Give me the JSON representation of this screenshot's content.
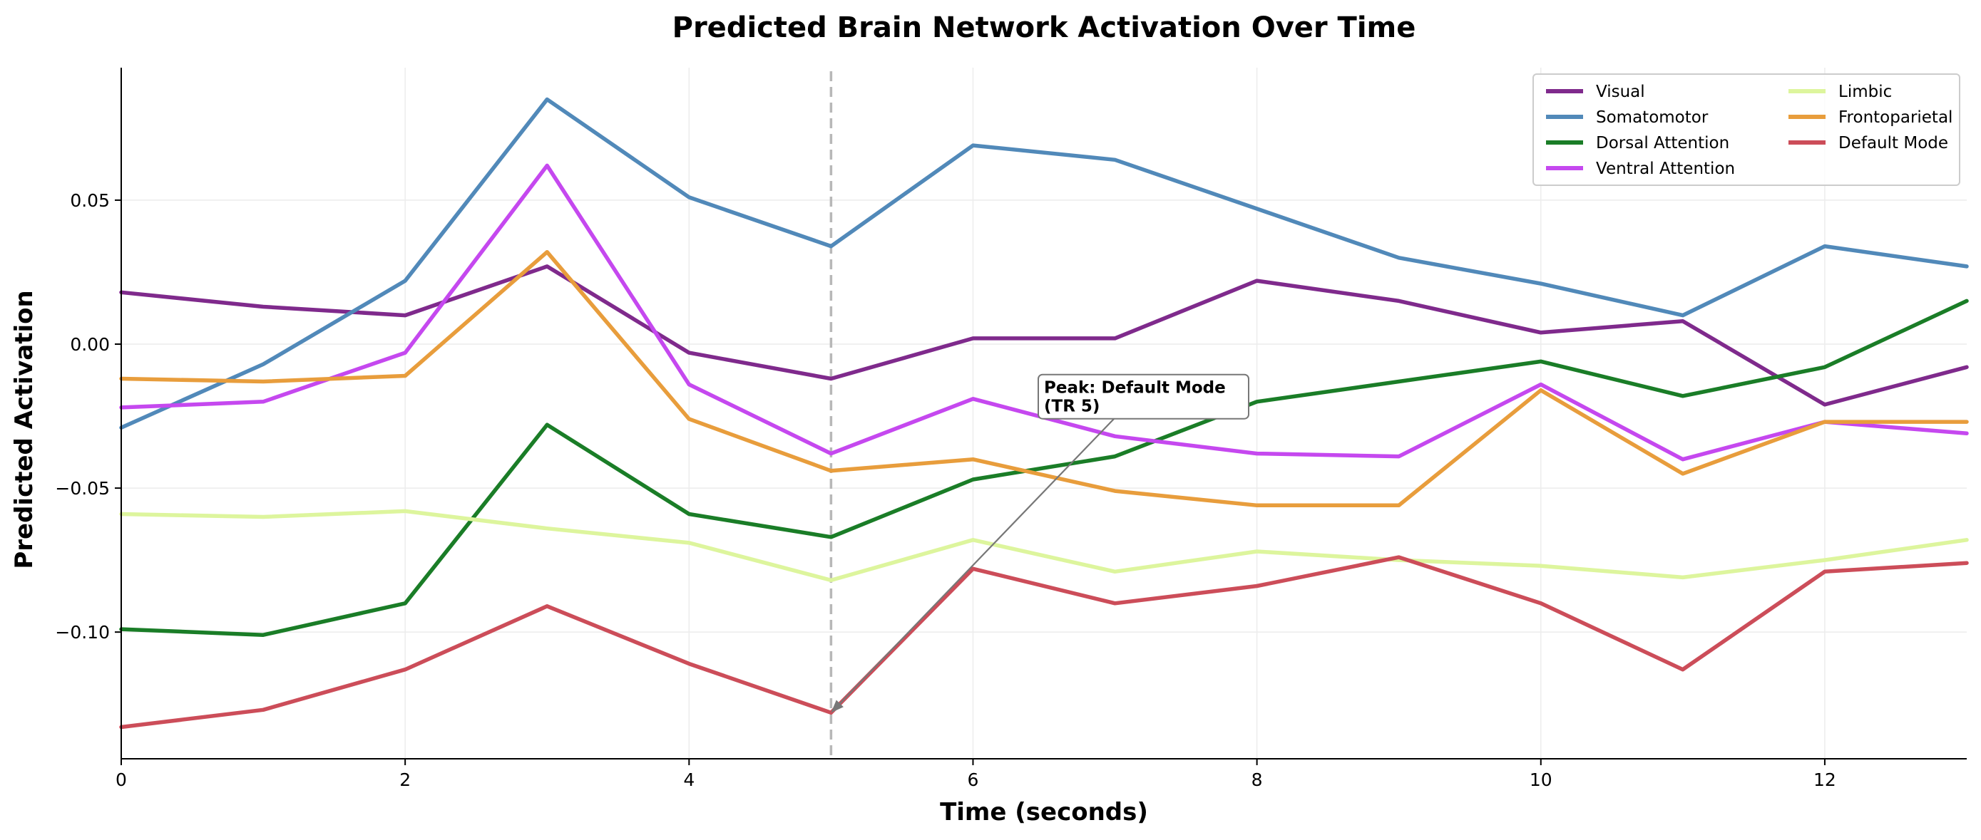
{
  "chart_data": {
    "type": "line",
    "title": "Predicted Brain Network Activation Over Time",
    "xlabel": "Time (seconds)",
    "ylabel": "Predicted Activation",
    "xlim": [
      0,
      13
    ],
    "ylim": [
      -0.144,
      0.096
    ],
    "xticks": [
      0,
      2,
      4,
      6,
      8,
      10,
      12
    ],
    "yticks": [
      -0.1,
      -0.05,
      0.0,
      0.05
    ],
    "ytick_labels": [
      "−0.10",
      "−0.05",
      "0.00",
      "0.05"
    ],
    "grid": true,
    "legend_position": "top-right",
    "legend_columns": 2,
    "x": [
      0,
      1,
      2,
      3,
      4,
      5,
      6,
      7,
      8,
      9,
      10,
      11,
      12,
      13
    ],
    "series": [
      {
        "name": "Visual",
        "color": "#7f2a8c",
        "values": [
          0.018,
          0.013,
          0.01,
          0.027,
          -0.003,
          -0.012,
          0.002,
          0.002,
          0.022,
          0.015,
          0.004,
          0.008,
          -0.021,
          -0.008
        ]
      },
      {
        "name": "Somatomotor",
        "color": "#5189b9",
        "values": [
          -0.029,
          -0.007,
          0.022,
          0.085,
          0.051,
          0.034,
          0.069,
          0.064,
          0.047,
          0.03,
          0.021,
          0.01,
          0.034,
          0.027
        ]
      },
      {
        "name": "Dorsal Attention",
        "color": "#1a7d27",
        "values": [
          -0.099,
          -0.101,
          -0.09,
          -0.028,
          -0.059,
          -0.067,
          -0.047,
          -0.039,
          -0.02,
          -0.013,
          -0.006,
          -0.018,
          -0.008,
          0.015
        ]
      },
      {
        "name": "Ventral Attention",
        "color": "#c548ef",
        "values": [
          -0.022,
          -0.02,
          -0.003,
          0.062,
          -0.014,
          -0.038,
          -0.019,
          -0.032,
          -0.038,
          -0.039,
          -0.014,
          -0.04,
          -0.027,
          -0.031
        ]
      },
      {
        "name": "Limbic",
        "color": "#ddf59d",
        "values": [
          -0.059,
          -0.06,
          -0.058,
          -0.064,
          -0.069,
          -0.082,
          -0.068,
          -0.079,
          -0.072,
          -0.075,
          -0.077,
          -0.081,
          -0.075,
          -0.068
        ]
      },
      {
        "name": "Frontoparietal",
        "color": "#e89d3c",
        "values": [
          -0.012,
          -0.013,
          -0.011,
          0.032,
          -0.026,
          -0.044,
          -0.04,
          -0.051,
          -0.056,
          -0.056,
          -0.016,
          -0.045,
          -0.027,
          -0.027
        ]
      },
      {
        "name": "Default Mode",
        "color": "#cc4d59",
        "values": [
          -0.133,
          -0.127,
          -0.113,
          -0.091,
          -0.111,
          -0.128,
          -0.078,
          -0.09,
          -0.084,
          -0.074,
          -0.09,
          -0.113,
          -0.079,
          -0.076
        ]
      }
    ],
    "vline": {
      "x": 5,
      "style": "dashed",
      "color": "#b8b8b8"
    },
    "annotation": {
      "text_lines": [
        "Peak: Default Mode",
        "(TR 5)"
      ],
      "point": [
        5,
        -0.128
      ],
      "text_at": [
        6.5,
        -0.017
      ]
    }
  }
}
